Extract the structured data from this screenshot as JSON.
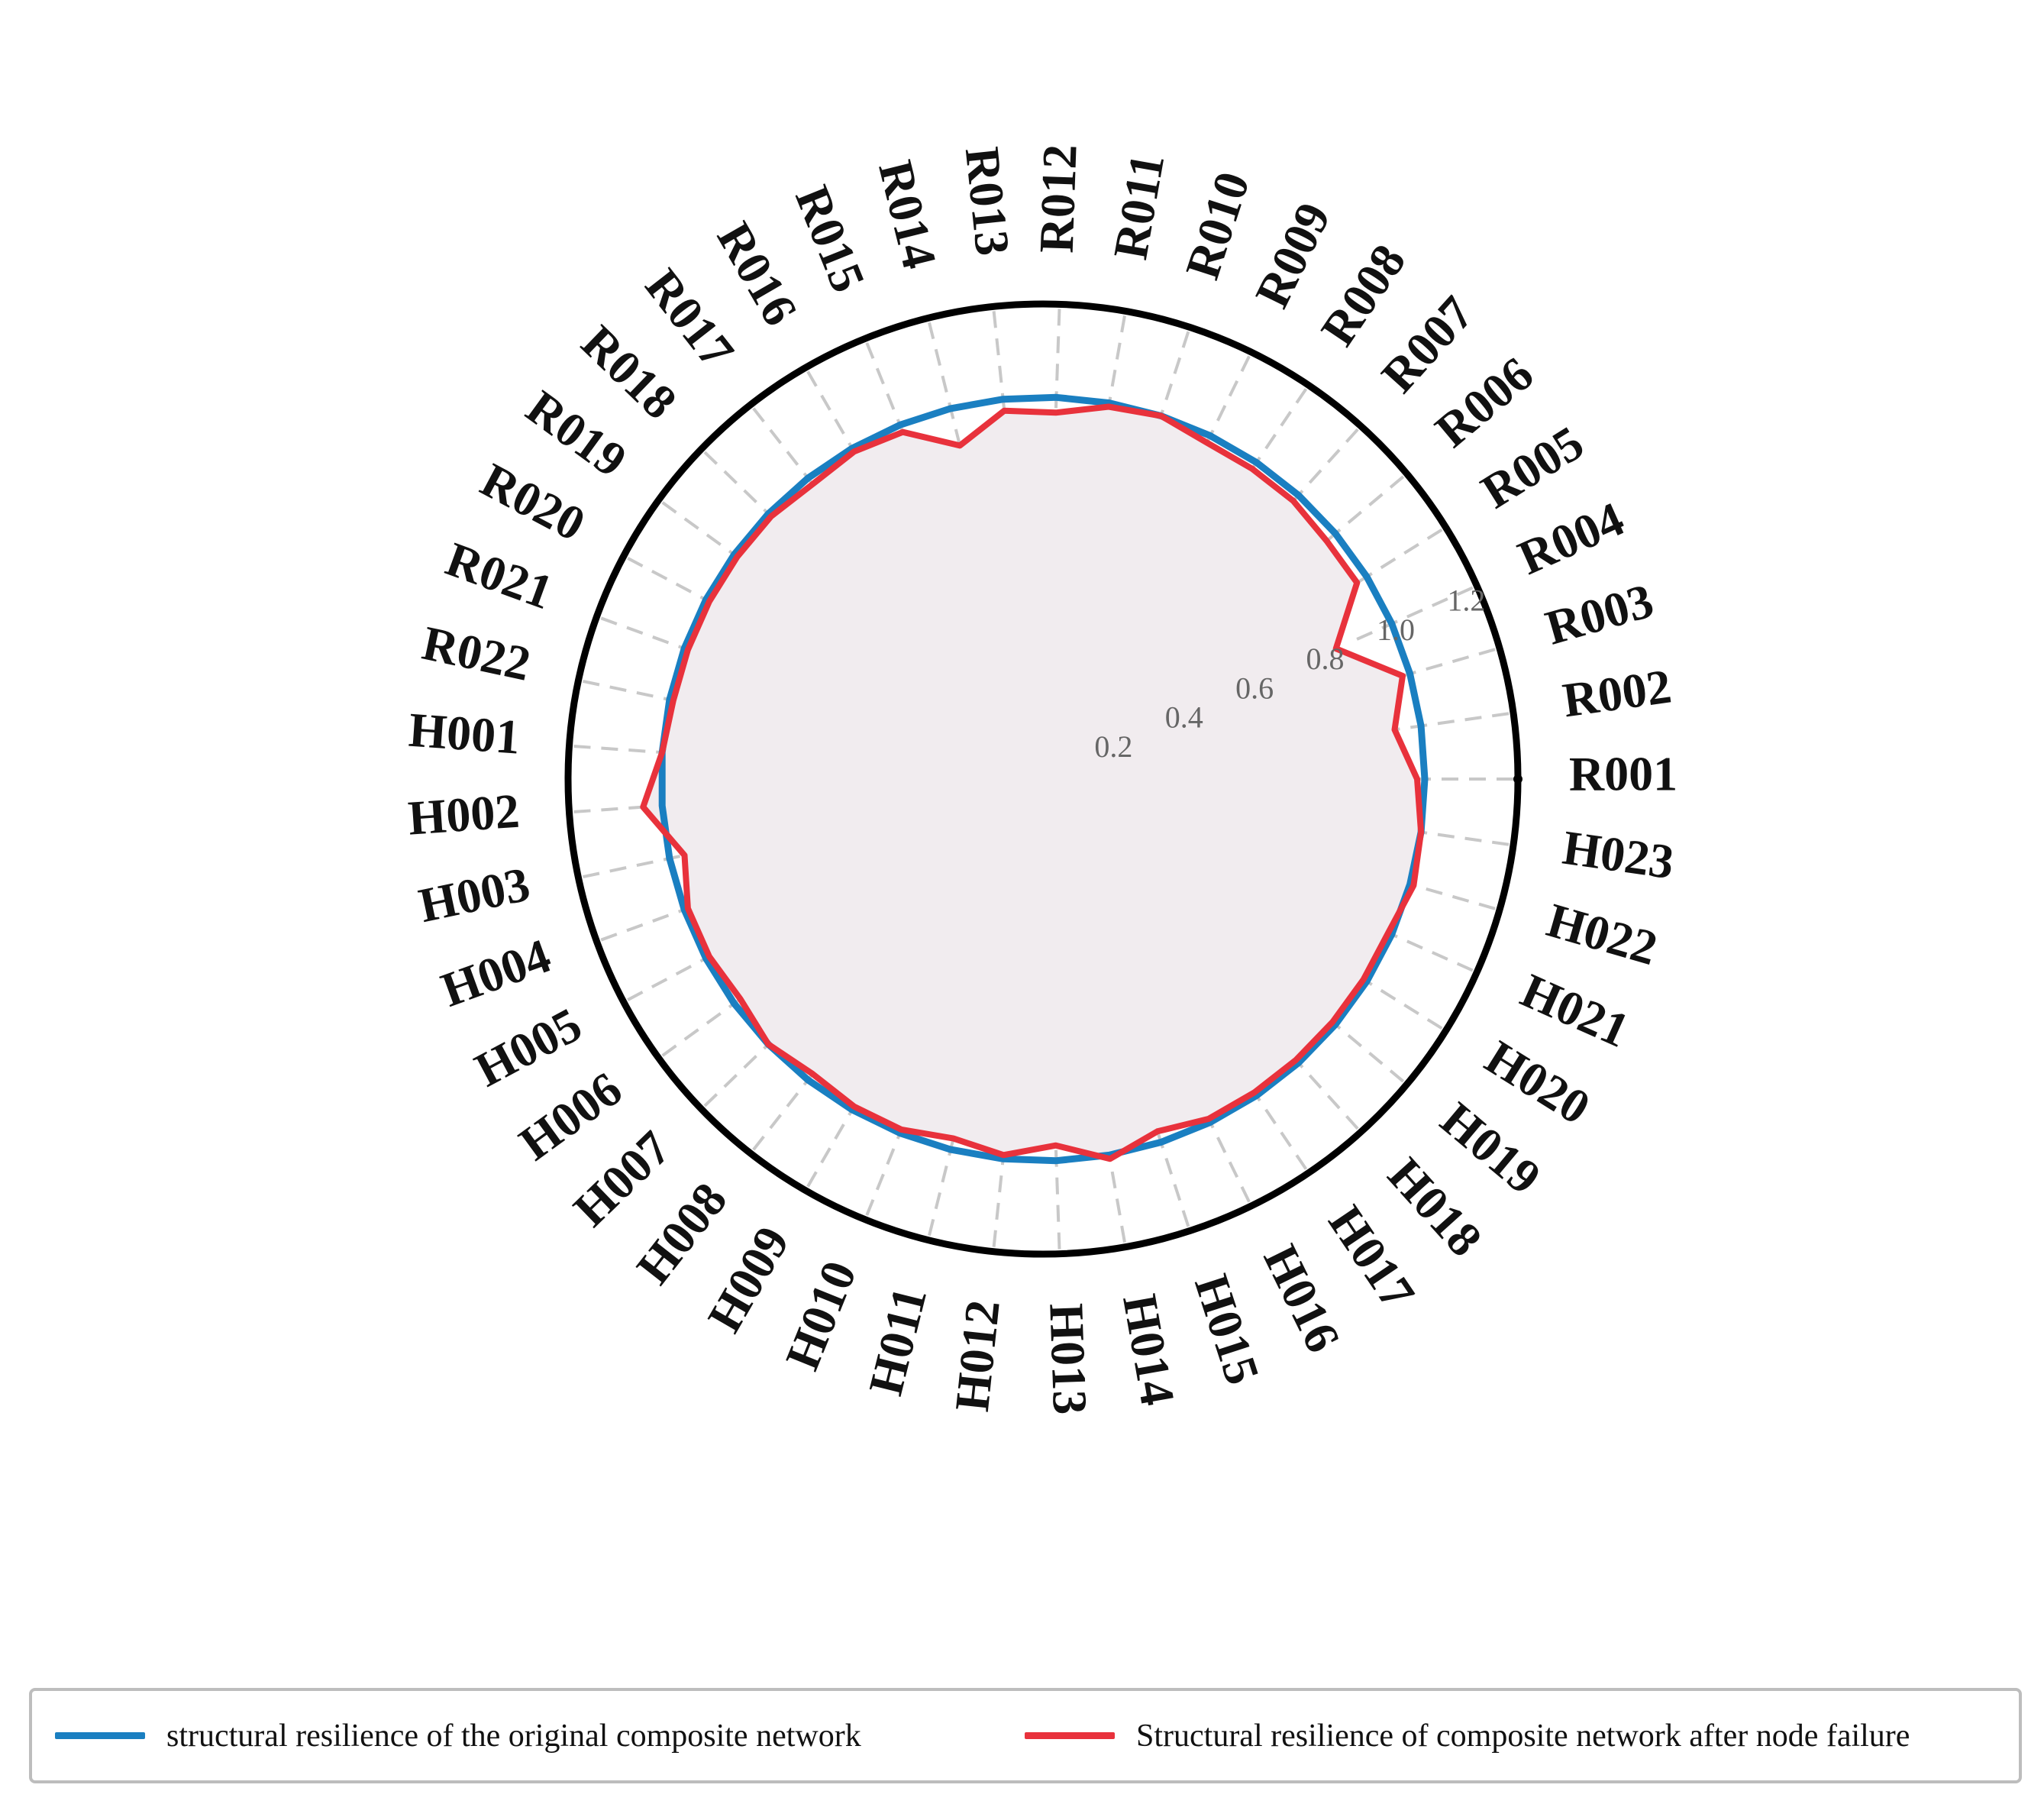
{
  "chart_data": {
    "type": "radar",
    "categories": [
      "R001",
      "R002",
      "R003",
      "R004",
      "R005",
      "R006",
      "R007",
      "R008",
      "R009",
      "R010",
      "R011",
      "R012",
      "R013",
      "R014",
      "R015",
      "R016",
      "R017",
      "R018",
      "R019",
      "R020",
      "R021",
      "R022",
      "H001",
      "H002",
      "H003",
      "H004",
      "H005",
      "H006",
      "H007",
      "H008",
      "H009",
      "H010",
      "H011",
      "H012",
      "H013",
      "H014",
      "H015",
      "H016",
      "H017",
      "H018",
      "H019",
      "H020",
      "H021",
      "H022",
      "H023"
    ],
    "radial_ticks": [
      "0.2",
      "0.4",
      "0.6",
      "0.8",
      "1.0",
      "1.2"
    ],
    "rlim": [
      0,
      1.2
    ],
    "grid": true,
    "legend_position": "bottom",
    "series": [
      {
        "name": "structural resilience of the original composite network",
        "color": "#1a7fc1",
        "values": [
          1.0,
          1.0,
          1.0,
          1.0,
          1.0,
          1.0,
          1.0,
          1.0,
          1.0,
          1.0,
          1.0,
          1.0,
          1.0,
          1.0,
          1.0,
          1.0,
          1.0,
          1.0,
          1.0,
          1.0,
          1.0,
          1.0,
          1.0,
          1.0,
          1.0,
          1.0,
          1.0,
          1.0,
          1.0,
          1.0,
          1.0,
          1.0,
          1.0,
          1.0,
          1.0,
          1.0,
          1.0,
          1.0,
          1.0,
          1.0,
          1.0,
          1.0,
          1.0,
          1.0,
          1.0
        ]
      },
      {
        "name": "Structural resilience of composite network after node failure",
        "color": "#e8323c",
        "fill": "#f1ecef",
        "values": [
          0.98,
          0.93,
          0.98,
          0.84,
          0.97,
          0.97,
          0.98,
          0.98,
          0.98,
          1.0,
          0.99,
          0.96,
          0.97,
          0.9,
          0.98,
          0.99,
          0.98,
          0.99,
          0.99,
          0.99,
          0.99,
          0.99,
          1.0,
          1.05,
          0.96,
          0.99,
          0.99,
          0.98,
          1.0,
          0.98,
          0.99,
          0.99,
          0.97,
          0.99,
          0.96,
          1.01,
          0.97,
          0.99,
          0.99,
          0.99,
          0.99,
          0.99,
          0.99,
          1.01,
          1.0
        ]
      }
    ]
  }
}
